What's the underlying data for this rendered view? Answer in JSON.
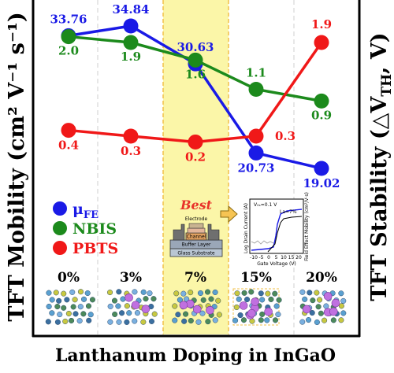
{
  "chart_data": {
    "type": "line",
    "categories": [
      "0%",
      "3%",
      "7%",
      "15%",
      "20%"
    ],
    "xlabel": "Lanthanum Doping in InGaO",
    "ylabel_left": "TFT Mobility (cm² V⁻¹ s⁻¹)",
    "ylabel_right": "TFT Stability (△V",
    "ylabel_right_sub": "TH",
    "ylabel_right_end": ", V)",
    "highlight": {
      "category": "7%",
      "label": "Best",
      "color": "#fbf6a8"
    },
    "series": [
      {
        "name": "μFE",
        "name_main": "μ",
        "name_sub": "FE",
        "color": "#1a1ae6",
        "axis": "left",
        "values": [
          33.76,
          34.84,
          30.63,
          20.73,
          19.02
        ],
        "labels": [
          "33.76",
          "34.84",
          "30.63",
          "20.73",
          "19.02"
        ]
      },
      {
        "name": "NBIS",
        "color": "#1c8a1c",
        "axis": "right",
        "values": [
          2.0,
          1.9,
          1.6,
          1.1,
          0.9
        ],
        "labels": [
          "2.0",
          "1.9",
          "1.6",
          "1.1",
          "0.9"
        ]
      },
      {
        "name": "PBTS",
        "color": "#f01818",
        "axis": "right",
        "values": [
          0.4,
          0.3,
          0.2,
          0.3,
          1.9
        ],
        "labels": [
          "0.4",
          "0.3",
          "0.2",
          "0.3",
          "1.9"
        ]
      }
    ]
  },
  "inset": {
    "layer_labels": [
      "Electrode",
      "Channel",
      "Buffer Layer",
      "Glass Substrate"
    ],
    "graph": {
      "ylabel_left": "Log Drain Current (A)",
      "ylabel_right": "Field Effect Mobility (cm²/V·s)",
      "xlabel": "Gate Voltage (V)",
      "xticks": [
        "-10",
        "-5",
        "0",
        "5",
        "10",
        "15",
        "20"
      ],
      "annotation_vds": "V₀ₛ=0.1 V",
      "annotation_la": "La=7%"
    }
  }
}
